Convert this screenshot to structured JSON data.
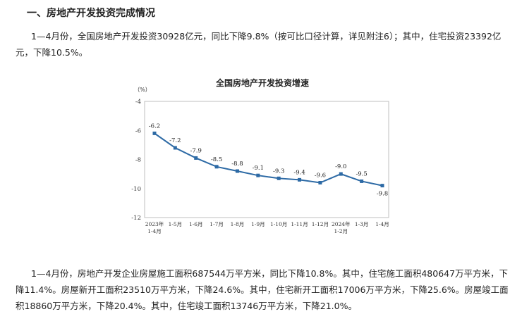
{
  "heading": "一、房地产开发投资完成情况",
  "paragraph1": "1—4月份，全国房地产开发投资30928亿元，同比下降9.8%（按可比口径计算，详见附注6）；其中，住宅投资23392亿元，下降10.5%。",
  "paragraph2": "1—4月份，房地产开发企业房屋施工面积687544万平方米，同比下降10.8%。其中，住宅施工面积480647万平方米，下降11.4%。房屋新开工面积23510万平方米，下降24.6%。其中，住宅新开工面积17006万平方米，下降25.6%。房屋竣工面积18860万平方米，下降20.4%。其中，住宅竣工面积13746万平方米，下降21.0%。",
  "chart_data": {
    "type": "line",
    "title": "全国房地产开发投资增速",
    "ylabel": "（%）",
    "xlabel": "",
    "ylim": [
      -12,
      -4
    ],
    "yticks": [
      -4,
      -6,
      -8,
      -10,
      -12
    ],
    "grid": false,
    "categories": [
      [
        "2023年",
        "1-4月"
      ],
      [
        "1-5月"
      ],
      [
        "1-6月"
      ],
      [
        "1-7月"
      ],
      [
        "1-8月"
      ],
      [
        "1-9月"
      ],
      [
        "1-10月"
      ],
      [
        "1-11月"
      ],
      [
        "1-12月"
      ],
      [
        "2024年",
        "1-2月"
      ],
      [
        "1-3月"
      ],
      [
        "1-4月"
      ]
    ],
    "values": [
      -6.2,
      -7.2,
      -7.9,
      -8.5,
      -8.8,
      -9.1,
      -9.3,
      -9.4,
      -9.6,
      -9.0,
      -9.5,
      -9.8
    ],
    "data_labels": [
      "-6.2",
      "-7.2",
      "-7.9",
      "-8.5",
      "-8.8",
      "-9.1",
      "-9.3",
      "-9.4",
      "-9.6",
      "-9.0",
      "-9.5",
      "-9.8"
    ],
    "series_color": "#2d6aa5"
  }
}
